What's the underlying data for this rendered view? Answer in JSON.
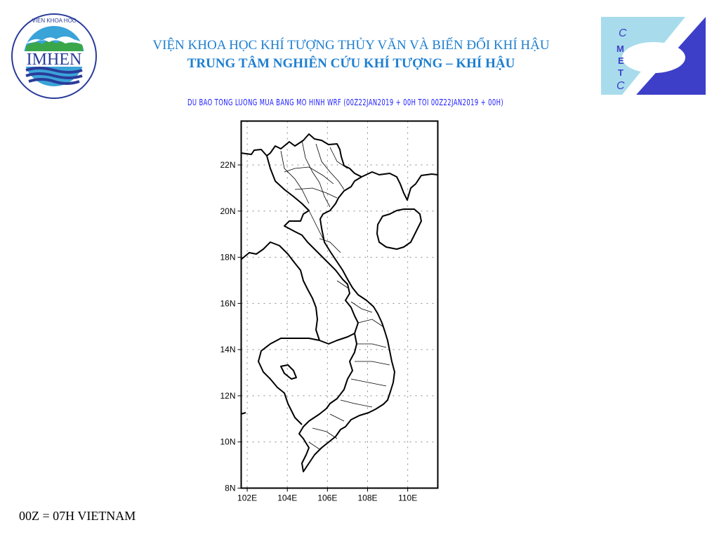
{
  "header": {
    "institute": "VIỆN KHOA HỌC KHÍ TƯỢNG THỦY VĂN VÀ BIẾN ĐỔI KHÍ HẬU",
    "center": "TRUNG TÂM NGHIÊN CỨU KHÍ TƯỢNG – KHÍ HẬU",
    "left_logo": {
      "text": "IMHEN",
      "ring_text": "VIEN KHOA HOC KHI TUONG THUY VAN VA BIEN DOI KHI HAU"
    },
    "right_logo": {
      "text": "CMETC",
      "colors": {
        "light": "#a8dcec",
        "dark": "#3d3fc8"
      }
    }
  },
  "map": {
    "title": "DU BAO TONG LUONG MUA BANG MO HINH WRF (00Z22JAN2019 + 00H TOI 00Z22JAN2019 + 00H)",
    "lat_labels": [
      "8N",
      "10N",
      "12N",
      "14N",
      "16N",
      "18N",
      "20N",
      "22N"
    ],
    "lon_labels": [
      "102E",
      "104E",
      "106E",
      "108E",
      "110E"
    ],
    "lat_range": [
      8,
      23.9
    ],
    "lon_range": [
      101.7,
      111.5
    ],
    "grid": "dotted"
  },
  "footer": {
    "note": "00Z = 07H VIETNAM"
  },
  "colors": {
    "title": "#1e7fd0",
    "subtitle": "#1a1aff"
  }
}
